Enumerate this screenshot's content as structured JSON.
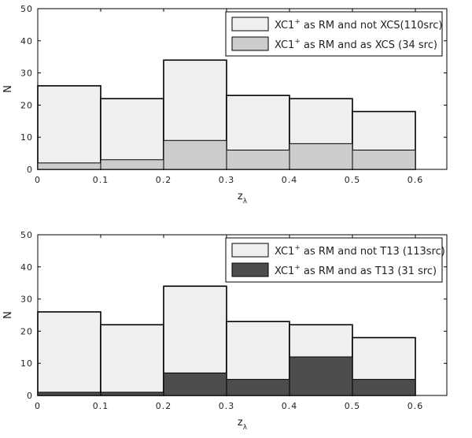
{
  "chart_data": [
    {
      "type": "bar",
      "bins": [
        [
          0.0,
          0.1
        ],
        [
          0.1,
          0.2
        ],
        [
          0.2,
          0.3
        ],
        [
          0.3,
          0.4
        ],
        [
          0.4,
          0.5
        ],
        [
          0.5,
          0.6
        ]
      ],
      "series": [
        {
          "name": "XC1+ as RM and not XCS(110src)",
          "values": [
            26,
            22,
            34,
            23,
            22,
            18
          ],
          "color": "#efefef"
        },
        {
          "name": "XC1+ as RM and as XCS (34 src)",
          "values": [
            2,
            3,
            9,
            6,
            8,
            6
          ],
          "color": "#cccccc"
        }
      ],
      "legend": [
        {
          "prefix": "XC1",
          "sup": "+",
          "suffix": " as RM and not XCS(110src)",
          "color": "#efefef"
        },
        {
          "prefix": "XC1",
          "sup": "+",
          "suffix": " as RM and as XCS (34 src)",
          "color": "#cccccc"
        }
      ],
      "xlabel": "z",
      "xlabel_sub": "λ",
      "ylabel": "N",
      "xlim": [
        0,
        0.65
      ],
      "ylim": [
        0,
        50
      ],
      "xticks": [
        "0",
        "0.1",
        "0.2",
        "0.3",
        "0.4",
        "0.5",
        "0.6"
      ],
      "yticks": [
        "0",
        "10",
        "20",
        "30",
        "40",
        "50"
      ],
      "legend_position": "top-right",
      "grid": false
    },
    {
      "type": "bar",
      "bins": [
        [
          0.0,
          0.1
        ],
        [
          0.1,
          0.2
        ],
        [
          0.2,
          0.3
        ],
        [
          0.3,
          0.4
        ],
        [
          0.4,
          0.5
        ],
        [
          0.5,
          0.6
        ]
      ],
      "series": [
        {
          "name": "XC1+ as RM and not T13 (113src)",
          "values": [
            26,
            22,
            34,
            23,
            22,
            18
          ],
          "color": "#efefef"
        },
        {
          "name": "XC1+ as RM and as T13 (31 src)",
          "values": [
            1,
            1,
            7,
            5,
            12,
            5
          ],
          "color": "#4d4d4d"
        }
      ],
      "legend": [
        {
          "prefix": "XC1",
          "sup": "+",
          "suffix": " as RM and not T13 (113src)",
          "color": "#efefef"
        },
        {
          "prefix": "XC1",
          "sup": "+",
          "suffix": " as RM and as T13 (31 src)",
          "color": "#4d4d4d"
        }
      ],
      "xlabel": "z",
      "xlabel_sub": "λ",
      "ylabel": "N",
      "xlim": [
        0,
        0.65
      ],
      "ylim": [
        0,
        50
      ],
      "xticks": [
        "0",
        "0.1",
        "0.2",
        "0.3",
        "0.4",
        "0.5",
        "0.6"
      ],
      "yticks": [
        "0",
        "10",
        "20",
        "30",
        "40",
        "50"
      ],
      "legend_position": "top-right",
      "grid": false
    }
  ]
}
